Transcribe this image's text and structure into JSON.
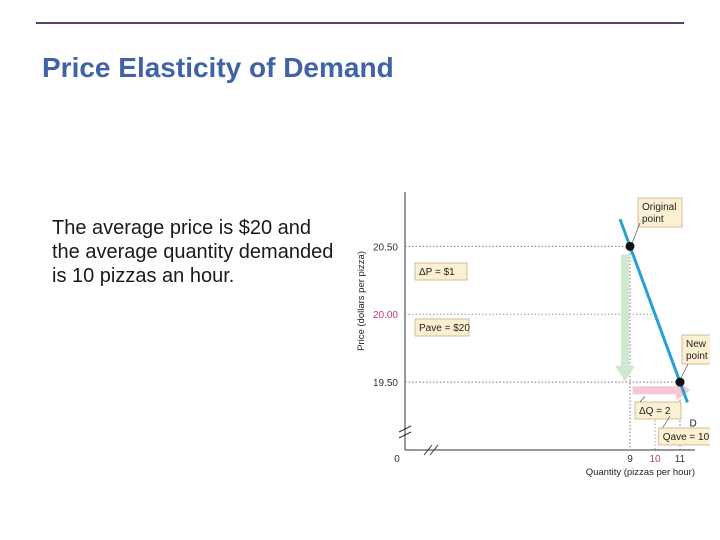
{
  "slide": {
    "title": "Price Elasticity of Demand",
    "body": "The average price is $20 and the average quantity demanded is 10 pizzas an hour."
  },
  "chart_data": {
    "type": "line",
    "xlabel": "Quantity (pizzas per hour)",
    "ylabel": "Price (dollars per pizza)",
    "x_ticks": [
      "0",
      "9",
      "10",
      "11"
    ],
    "y_ticks": [
      "19.50",
      "20.00",
      "20.50"
    ],
    "axis_breaks": true,
    "xlim": [
      0,
      11.6
    ],
    "ylim": [
      19.0,
      20.9
    ],
    "series": [
      {
        "name": "D",
        "points": [
          {
            "x": 8.6,
            "y": 20.7
          },
          {
            "x": 11.3,
            "y": 19.35
          }
        ]
      }
    ],
    "markers": [
      {
        "x": 9,
        "y": 20.5,
        "label": [
          "Original",
          "point"
        ]
      },
      {
        "x": 11,
        "y": 19.5,
        "label": [
          "New",
          "point"
        ]
      }
    ],
    "annotations": {
      "delta_p": "ΔP = $1",
      "p_ave": "Pave = $20",
      "delta_q": "ΔQ = 2",
      "q_ave": "Qave = 10"
    },
    "colors": {
      "demand_line": "#2a9fd6",
      "price_arrow": "#cfe8cf",
      "quantity_arrow": "#f6c6d2",
      "label_box": "#fdf0d2",
      "highlight_tick": "#c0398a"
    }
  }
}
